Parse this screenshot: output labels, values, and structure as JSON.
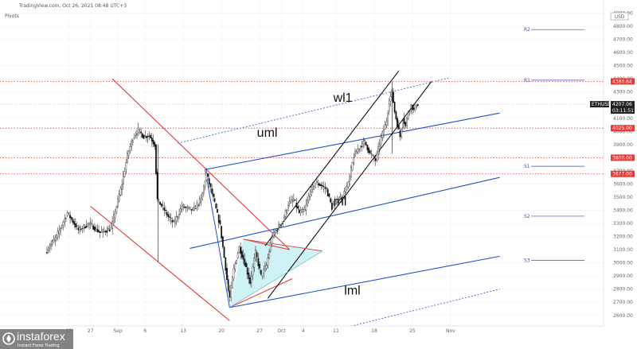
{
  "header": {
    "source": "TradingView.com, Oct 26, 2021 08:48 UTC+3",
    "indicator": "Pivots"
  },
  "currency_box": "USD",
  "chart_data": {
    "type": "candlestick",
    "symbol": "ETHUSD",
    "last_price": "4207.06",
    "countdown": "03:11:51",
    "ylim": [
      2520,
      5000
    ],
    "y_ticks": [
      {
        "v": 4900,
        "label": "4900.00"
      },
      {
        "v": 4800,
        "label": "4800.00"
      },
      {
        "v": 4700,
        "label": "4700.00"
      },
      {
        "v": 4600,
        "label": "4600.00"
      },
      {
        "v": 4500,
        "label": "4500.00"
      },
      {
        "v": 4400,
        "label": "4400.00"
      },
      {
        "v": 4300,
        "label": "4300.00"
      },
      {
        "v": 4100,
        "label": "4100.00"
      },
      {
        "v": 4000,
        "label": "4000.00"
      },
      {
        "v": 3900,
        "label": "3900.00"
      },
      {
        "v": 3700,
        "label": "3700.00"
      },
      {
        "v": 3600,
        "label": "3600.00"
      },
      {
        "v": 3500,
        "label": "3500.00"
      },
      {
        "v": 3400,
        "label": "3400.00"
      },
      {
        "v": 3300,
        "label": "3300.00"
      },
      {
        "v": 3200,
        "label": "3200.00"
      },
      {
        "v": 3100,
        "label": "3100.00"
      },
      {
        "v": 3000,
        "label": "3000.00"
      },
      {
        "v": 2900,
        "label": "2900.00"
      },
      {
        "v": 2800,
        "label": "2800.00"
      },
      {
        "v": 2700,
        "label": "2700.00"
      },
      {
        "v": 2600,
        "label": "2600.00"
      }
    ],
    "x_ticks": [
      {
        "d": -9,
        "label": "23"
      },
      {
        "d": -5,
        "label": "27"
      },
      {
        "d": 0,
        "label": "Sep"
      },
      {
        "d": 5,
        "label": "6"
      },
      {
        "d": 12,
        "label": "13"
      },
      {
        "d": 19,
        "label": "20"
      },
      {
        "d": 26,
        "label": "27"
      },
      {
        "d": 30,
        "label": "Oct"
      },
      {
        "d": 34,
        "label": "4"
      },
      {
        "d": 40,
        "label": "11"
      },
      {
        "d": 47,
        "label": "18"
      },
      {
        "d": 54,
        "label": "25"
      },
      {
        "d": 61,
        "label": "Nov"
      }
    ],
    "price_tags": [
      {
        "v": 4380.64,
        "label": "4380.64",
        "color": "#e53935"
      },
      {
        "v": 4025.0,
        "label": "4025.00",
        "color": "#e53935"
      },
      {
        "v": 3800.0,
        "label": "3800.00",
        "color": "#e53935"
      },
      {
        "v": 3677.0,
        "label": "3677.00",
        "color": "#e53935"
      }
    ],
    "pivots": [
      {
        "name": "R2",
        "v": 4775
      },
      {
        "name": "R1",
        "v": 4390
      },
      {
        "name": "S1",
        "v": 3735
      },
      {
        "name": "S2",
        "v": 3355
      },
      {
        "name": "S3",
        "v": 3020
      }
    ],
    "annotations": [
      {
        "text": "wl1",
        "d": 39.5,
        "v": 4225
      },
      {
        "text": "uml",
        "d": 25.5,
        "v": 3960
      },
      {
        "text": "ml",
        "d": 39.5,
        "v": 3435
      },
      {
        "text": "lml",
        "d": 41.5,
        "v": 2760
      }
    ],
    "anchors": [
      {
        "d": -13,
        "v": 3080
      },
      {
        "d": -11,
        "v": 3200
      },
      {
        "d": -9,
        "v": 3380
      },
      {
        "d": -7,
        "v": 3250
      },
      {
        "d": -5,
        "v": 3300
      },
      {
        "d": -3,
        "v": 3230
      },
      {
        "d": -1,
        "v": 3260
      },
      {
        "d": 1,
        "v": 3600
      },
      {
        "d": 2,
        "v": 3820
      },
      {
        "d": 3,
        "v": 3950
      },
      {
        "d": 4,
        "v": 4010
      },
      {
        "d": 5,
        "v": 3960
      },
      {
        "d": 6,
        "v": 3970
      },
      {
        "d": 7,
        "v": 3900
      },
      {
        "d": 7.5,
        "v": 3480
      },
      {
        "d": 8.5,
        "v": 3420
      },
      {
        "d": 9.5,
        "v": 3350
      },
      {
        "d": 10.5,
        "v": 3300
      },
      {
        "d": 12,
        "v": 3430
      },
      {
        "d": 14,
        "v": 3400
      },
      {
        "d": 15.5,
        "v": 3480
      },
      {
        "d": 16.5,
        "v": 3680
      },
      {
        "d": 18,
        "v": 3450
      },
      {
        "d": 19,
        "v": 3280
      },
      {
        "d": 20,
        "v": 2960
      },
      {
        "d": 20.7,
        "v": 2720
      },
      {
        "d": 21.5,
        "v": 2950
      },
      {
        "d": 22.5,
        "v": 3120
      },
      {
        "d": 23.5,
        "v": 3000
      },
      {
        "d": 24.5,
        "v": 2850
      },
      {
        "d": 25.5,
        "v": 3080
      },
      {
        "d": 26.5,
        "v": 2900
      },
      {
        "d": 27.5,
        "v": 2980
      },
      {
        "d": 28.5,
        "v": 3200
      },
      {
        "d": 29.5,
        "v": 3260
      },
      {
        "d": 30.5,
        "v": 3320
      },
      {
        "d": 31.5,
        "v": 3450
      },
      {
        "d": 32.5,
        "v": 3480
      },
      {
        "d": 33.5,
        "v": 3380
      },
      {
        "d": 34.5,
        "v": 3400
      },
      {
        "d": 35.5,
        "v": 3540
      },
      {
        "d": 36.5,
        "v": 3610
      },
      {
        "d": 37.5,
        "v": 3590
      },
      {
        "d": 38.5,
        "v": 3560
      },
      {
        "d": 39.5,
        "v": 3420
      },
      {
        "d": 40.5,
        "v": 3480
      },
      {
        "d": 41.5,
        "v": 3510
      },
      {
        "d": 42.5,
        "v": 3600
      },
      {
        "d": 43.5,
        "v": 3810
      },
      {
        "d": 44.5,
        "v": 3880
      },
      {
        "d": 45.5,
        "v": 3920
      },
      {
        "d": 46.5,
        "v": 3830
      },
      {
        "d": 47.5,
        "v": 3780
      },
      {
        "d": 48.5,
        "v": 3950
      },
      {
        "d": 49.5,
        "v": 4080
      },
      {
        "d": 50,
        "v": 4230
      },
      {
        "d": 50.5,
        "v": 4300
      },
      {
        "d": 51,
        "v": 4150
      },
      {
        "d": 51.5,
        "v": 4050
      },
      {
        "d": 52,
        "v": 3960
      },
      {
        "d": 52.5,
        "v": 4100
      },
      {
        "d": 53,
        "v": 4040
      },
      {
        "d": 53.5,
        "v": 4150
      },
      {
        "d": 54,
        "v": 4200
      },
      {
        "d": 54.5,
        "v": 4160
      },
      {
        "d": 55,
        "v": 4207
      }
    ],
    "lines": [
      {
        "name": "red-descending-upper",
        "color": "#e53935",
        "w": 1.1,
        "p": [
          [
            -1,
            4400
          ],
          [
            31.5,
            3100
          ]
        ]
      },
      {
        "name": "red-descending-lower",
        "color": "#e53935",
        "w": 1.1,
        "p": [
          [
            -5,
            3430
          ],
          [
            20.5,
            2560
          ]
        ]
      },
      {
        "name": "red-triangle-top",
        "color": "#e53935",
        "w": 1,
        "p": [
          [
            23,
            3180
          ],
          [
            31.5,
            3100
          ]
        ]
      },
      {
        "name": "red-triangle-bottom",
        "color": "#e53935",
        "w": 1,
        "p": [
          [
            20.5,
            2660
          ],
          [
            32,
            2880
          ]
        ]
      },
      {
        "name": "blue-ml-line",
        "color": "#1e50c8",
        "w": 1.1,
        "p": [
          [
            13.2,
            3110
          ],
          [
            70,
            3650
          ]
        ]
      },
      {
        "name": "blue-lml-line",
        "color": "#1e50c8",
        "w": 1.1,
        "p": [
          [
            20.5,
            2660
          ],
          [
            70,
            3050
          ]
        ]
      },
      {
        "name": "blue-uml-line",
        "color": "#1e50c8",
        "w": 1.1,
        "p": [
          [
            16,
            3710
          ],
          [
            70,
            4140
          ]
        ]
      },
      {
        "name": "blue-fork-handle",
        "color": "#1e50c8",
        "w": 1,
        "p": [
          [
            16,
            3710
          ],
          [
            20.5,
            2660
          ]
        ]
      },
      {
        "name": "channel-upper",
        "color": "#111111",
        "w": 1.1,
        "p": [
          [
            27,
            3130
          ],
          [
            51.5,
            4460
          ]
        ]
      },
      {
        "name": "channel-lower",
        "color": "#111111",
        "w": 1.1,
        "p": [
          [
            27.5,
            2730
          ],
          [
            57.5,
            4380
          ]
        ]
      },
      {
        "name": "dotted-warning-line",
        "color": "#4a78d6",
        "w": 1,
        "dash": "2,2",
        "p": [
          [
            11,
            3910
          ],
          [
            61,
            4410
          ]
        ]
      },
      {
        "name": "dotted-lower-line",
        "color": "#4a78d6",
        "w": 1,
        "dash": "2,2",
        "p": [
          [
            41,
            2500
          ],
          [
            70,
            2800
          ]
        ]
      }
    ],
    "triangle": [
      [
        20.5,
        2660
      ],
      [
        23,
        3180
      ],
      [
        37.5,
        3090
      ]
    ]
  },
  "watermark": {
    "brand": "instaforex",
    "tagline": "Instant Forex Trading"
  }
}
